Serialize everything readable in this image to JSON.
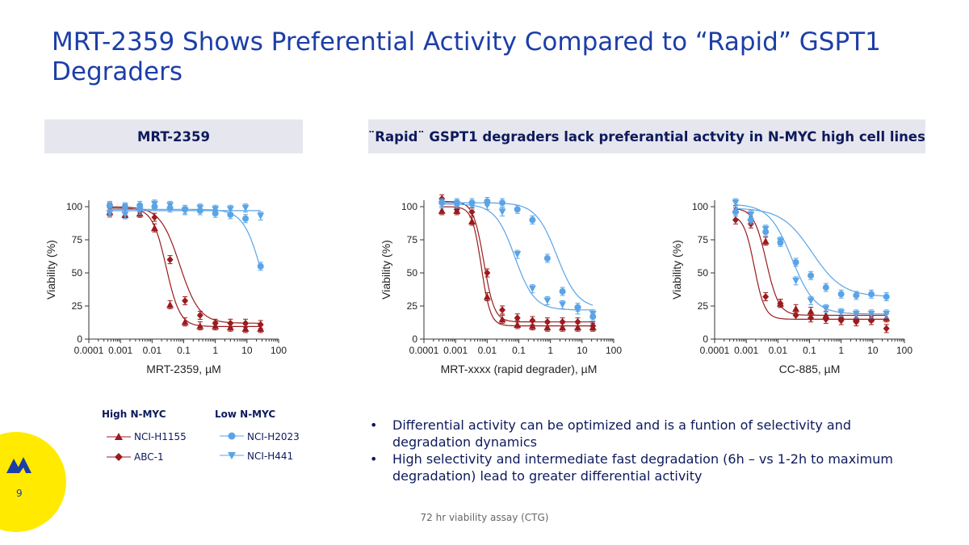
{
  "slide": {
    "title": "MRT-2359 Shows Preferential Activity Compared to “Rapid” GSPT1 Degraders",
    "header_left": "MRT-2359",
    "header_right": "¨Rapid¨ GSPT1 degraders lack preferantial actvity in N-MYC high cell lines",
    "bullets": [
      "Differential activity can be optimized and is a funtion of selectivity and degradation dynamics",
      "High selectivity and intermediate fast degradation (6h – vs 1-2h to maximum degradation) lead to greater differential activity"
    ],
    "footnote": "72 hr viability assay (CTG)",
    "page_number": "9",
    "legend": {
      "high_title": "High N-MYC",
      "low_title": "Low N-MYC",
      "high_items": [
        "NCI-H1155",
        "ABC-1"
      ],
      "low_items": [
        "NCI-H2023",
        "NCI-H441"
      ]
    }
  },
  "colors": {
    "title": "#1c3ea8",
    "dark_red": "#9b1b1e",
    "light_blue": "#5aa4e6",
    "header_bg": "#e6e6ee",
    "badge": "#ffea00"
  },
  "chart_data": [
    {
      "type": "scatter",
      "xlabel": "MRT-2359, µM",
      "ylabel": "Viability (%)",
      "xscale": "log",
      "xlim": [
        0.0001,
        100
      ],
      "ylim": [
        0,
        100
      ],
      "xticklabels": [
        "0.0001",
        "0.001",
        "0.01",
        "0.1",
        "1",
        "10",
        "100"
      ],
      "yticklabels": [
        "0",
        "25",
        "50",
        "75",
        "100"
      ],
      "series": [
        {
          "name": "NCI-H1155",
          "marker": "triangle-up",
          "color": "#9b1b1e",
          "x": [
            0.00046,
            0.0014,
            0.0041,
            0.012,
            0.037,
            0.11,
            0.33,
            1,
            3,
            9,
            27
          ],
          "y": [
            96,
            94,
            95,
            84,
            26,
            13,
            10,
            10,
            9,
            8,
            8
          ],
          "fit": {
            "top": 99,
            "bottom": 9.5,
            "ic50": 0.028,
            "hill": 2.0
          }
        },
        {
          "name": "ABC-1",
          "marker": "diamond",
          "color": "#9b1b1e",
          "x": [
            0.00046,
            0.0014,
            0.0041,
            0.012,
            0.037,
            0.11,
            0.33,
            1,
            3,
            9,
            27
          ],
          "y": [
            100,
            99,
            99,
            92,
            60,
            29,
            18,
            12,
            12,
            12,
            11
          ],
          "fit": {
            "top": 100,
            "bottom": 12,
            "ic50": 0.075,
            "hill": 1.4
          }
        },
        {
          "name": "NCI-H2023",
          "marker": "circle",
          "color": "#5aa4e6",
          "x": [
            0.00046,
            0.0014,
            0.0041,
            0.012,
            0.037,
            0.11,
            0.33,
            1,
            3,
            9,
            27
          ],
          "y": [
            101,
            100,
            101,
            100,
            99,
            98,
            97,
            95,
            94,
            91,
            55
          ],
          "fit": {
            "top": 98,
            "bottom": 0,
            "ic50": 30,
            "hill": 1.5
          }
        },
        {
          "name": "NCI-H441",
          "marker": "triangle-down",
          "color": "#5aa4e6",
          "x": [
            0.00046,
            0.0014,
            0.0041,
            0.012,
            0.037,
            0.11,
            0.33,
            1,
            3,
            9,
            27
          ],
          "y": [
            95,
            94,
            97,
            102,
            101,
            97,
            99,
            98,
            98,
            99,
            93
          ],
          "fit": {
            "top": 97,
            "bottom": 97,
            "ic50": 1,
            "hill": 1
          }
        }
      ]
    },
    {
      "type": "scatter",
      "xlabel": "MRT-xxxx (rapid degrader), µM",
      "ylabel": "Viability (%)",
      "xscale": "log",
      "xlim": [
        0.0001,
        100
      ],
      "ylim": [
        0,
        100
      ],
      "xticklabels": [
        "0.0001",
        "0.001",
        "0.01",
        "0.1",
        "1",
        "10",
        "100"
      ],
      "yticklabels": [
        "0",
        "25",
        "50",
        "75",
        "100"
      ],
      "series": [
        {
          "name": "NCI-H1155",
          "marker": "triangle-up",
          "color": "#9b1b1e",
          "x": [
            0.00037,
            0.0011,
            0.0033,
            0.01,
            0.03,
            0.09,
            0.27,
            0.8,
            2.4,
            7.3,
            22
          ],
          "y": [
            97,
            97,
            89,
            32,
            15,
            11,
            10,
            9,
            9,
            9,
            9
          ],
          "fit": {
            "top": 100,
            "bottom": 10,
            "ic50": 0.0065,
            "hill": 3.0
          }
        },
        {
          "name": "ABC-1",
          "marker": "diamond",
          "color": "#9b1b1e",
          "x": [
            0.00037,
            0.0011,
            0.0033,
            0.01,
            0.03,
            0.09,
            0.27,
            0.8,
            2.4,
            7.3,
            22
          ],
          "y": [
            106,
            98,
            96,
            50,
            22,
            16,
            14,
            13,
            13,
            13,
            10
          ],
          "fit": {
            "top": 104,
            "bottom": 13,
            "ic50": 0.0078,
            "hill": 2.6
          }
        },
        {
          "name": "NCI-H2023",
          "marker": "circle",
          "color": "#5aa4e6",
          "x": [
            0.00037,
            0.0011,
            0.0033,
            0.01,
            0.03,
            0.09,
            0.27,
            0.8,
            2.4,
            7.3,
            22
          ],
          "y": [
            103,
            103,
            103,
            104,
            103,
            98,
            90,
            61,
            36,
            24,
            17
          ],
          "fit": {
            "top": 103,
            "bottom": 23,
            "ic50": 1.6,
            "hill": 1.3
          }
        },
        {
          "name": "NCI-H441",
          "marker": "triangle-down",
          "color": "#5aa4e6",
          "x": [
            0.00037,
            0.0011,
            0.0033,
            0.01,
            0.03,
            0.09,
            0.27,
            0.8,
            2.4,
            7.3,
            22
          ],
          "y": [
            102,
            102,
            101,
            101,
            96,
            64,
            38,
            29,
            26,
            22,
            19
          ],
          "fit": {
            "top": 102,
            "bottom": 22,
            "ic50": 0.075,
            "hill": 1.4
          }
        }
      ]
    },
    {
      "type": "scatter",
      "xlabel": "CC-885, µM",
      "ylabel": "Viability (%)",
      "xscale": "log",
      "xlim": [
        0.0001,
        100
      ],
      "ylim": [
        0,
        100
      ],
      "xticklabels": [
        "0.0001",
        "0.001",
        "0.01",
        "0.1",
        "1",
        "10",
        "100"
      ],
      "yticklabels": [
        "0",
        "25",
        "50",
        "75",
        "100"
      ],
      "series": [
        {
          "name": "NCI-H1155",
          "marker": "triangle-up",
          "color": "#9b1b1e",
          "x": [
            0.00046,
            0.0014,
            0.0041,
            0.012,
            0.037,
            0.11,
            0.33,
            1,
            3,
            9,
            27
          ],
          "y": [
            98,
            92,
            74,
            27,
            23,
            21,
            18,
            17,
            16,
            16,
            16
          ],
          "fit": {
            "top": 99,
            "bottom": 18,
            "ic50": 0.0043,
            "hill": 2.2
          }
        },
        {
          "name": "ABC-1",
          "marker": "diamond",
          "color": "#9b1b1e",
          "x": [
            0.00046,
            0.0014,
            0.0041,
            0.012,
            0.037,
            0.11,
            0.33,
            1,
            3,
            9,
            27
          ],
          "y": [
            90,
            87,
            32,
            27,
            18,
            16,
            15,
            14,
            13,
            14,
            8
          ],
          "fit": {
            "top": 94,
            "bottom": 15,
            "ic50": 0.0018,
            "hill": 2.6
          }
        },
        {
          "name": "NCI-H2023",
          "marker": "circle",
          "color": "#5aa4e6",
          "x": [
            0.00046,
            0.0014,
            0.0041,
            0.012,
            0.037,
            0.11,
            0.33,
            1,
            3,
            9,
            27
          ],
          "y": [
            96,
            90,
            81,
            73,
            58,
            48,
            39,
            34,
            33,
            34,
            32
          ],
          "fit": {
            "top": 99,
            "bottom": 32,
            "ic50": 0.12,
            "hill": 0.9
          }
        },
        {
          "name": "NCI-H441",
          "marker": "triangle-down",
          "color": "#5aa4e6",
          "x": [
            0.00046,
            0.0014,
            0.0041,
            0.012,
            0.037,
            0.11,
            0.33,
            1,
            3,
            9,
            27
          ],
          "y": [
            103,
            94,
            83,
            74,
            44,
            29,
            23,
            20,
            19,
            19,
            19
          ],
          "fit": {
            "top": 102,
            "bottom": 19,
            "ic50": 0.028,
            "hill": 1.2
          }
        }
      ]
    }
  ]
}
